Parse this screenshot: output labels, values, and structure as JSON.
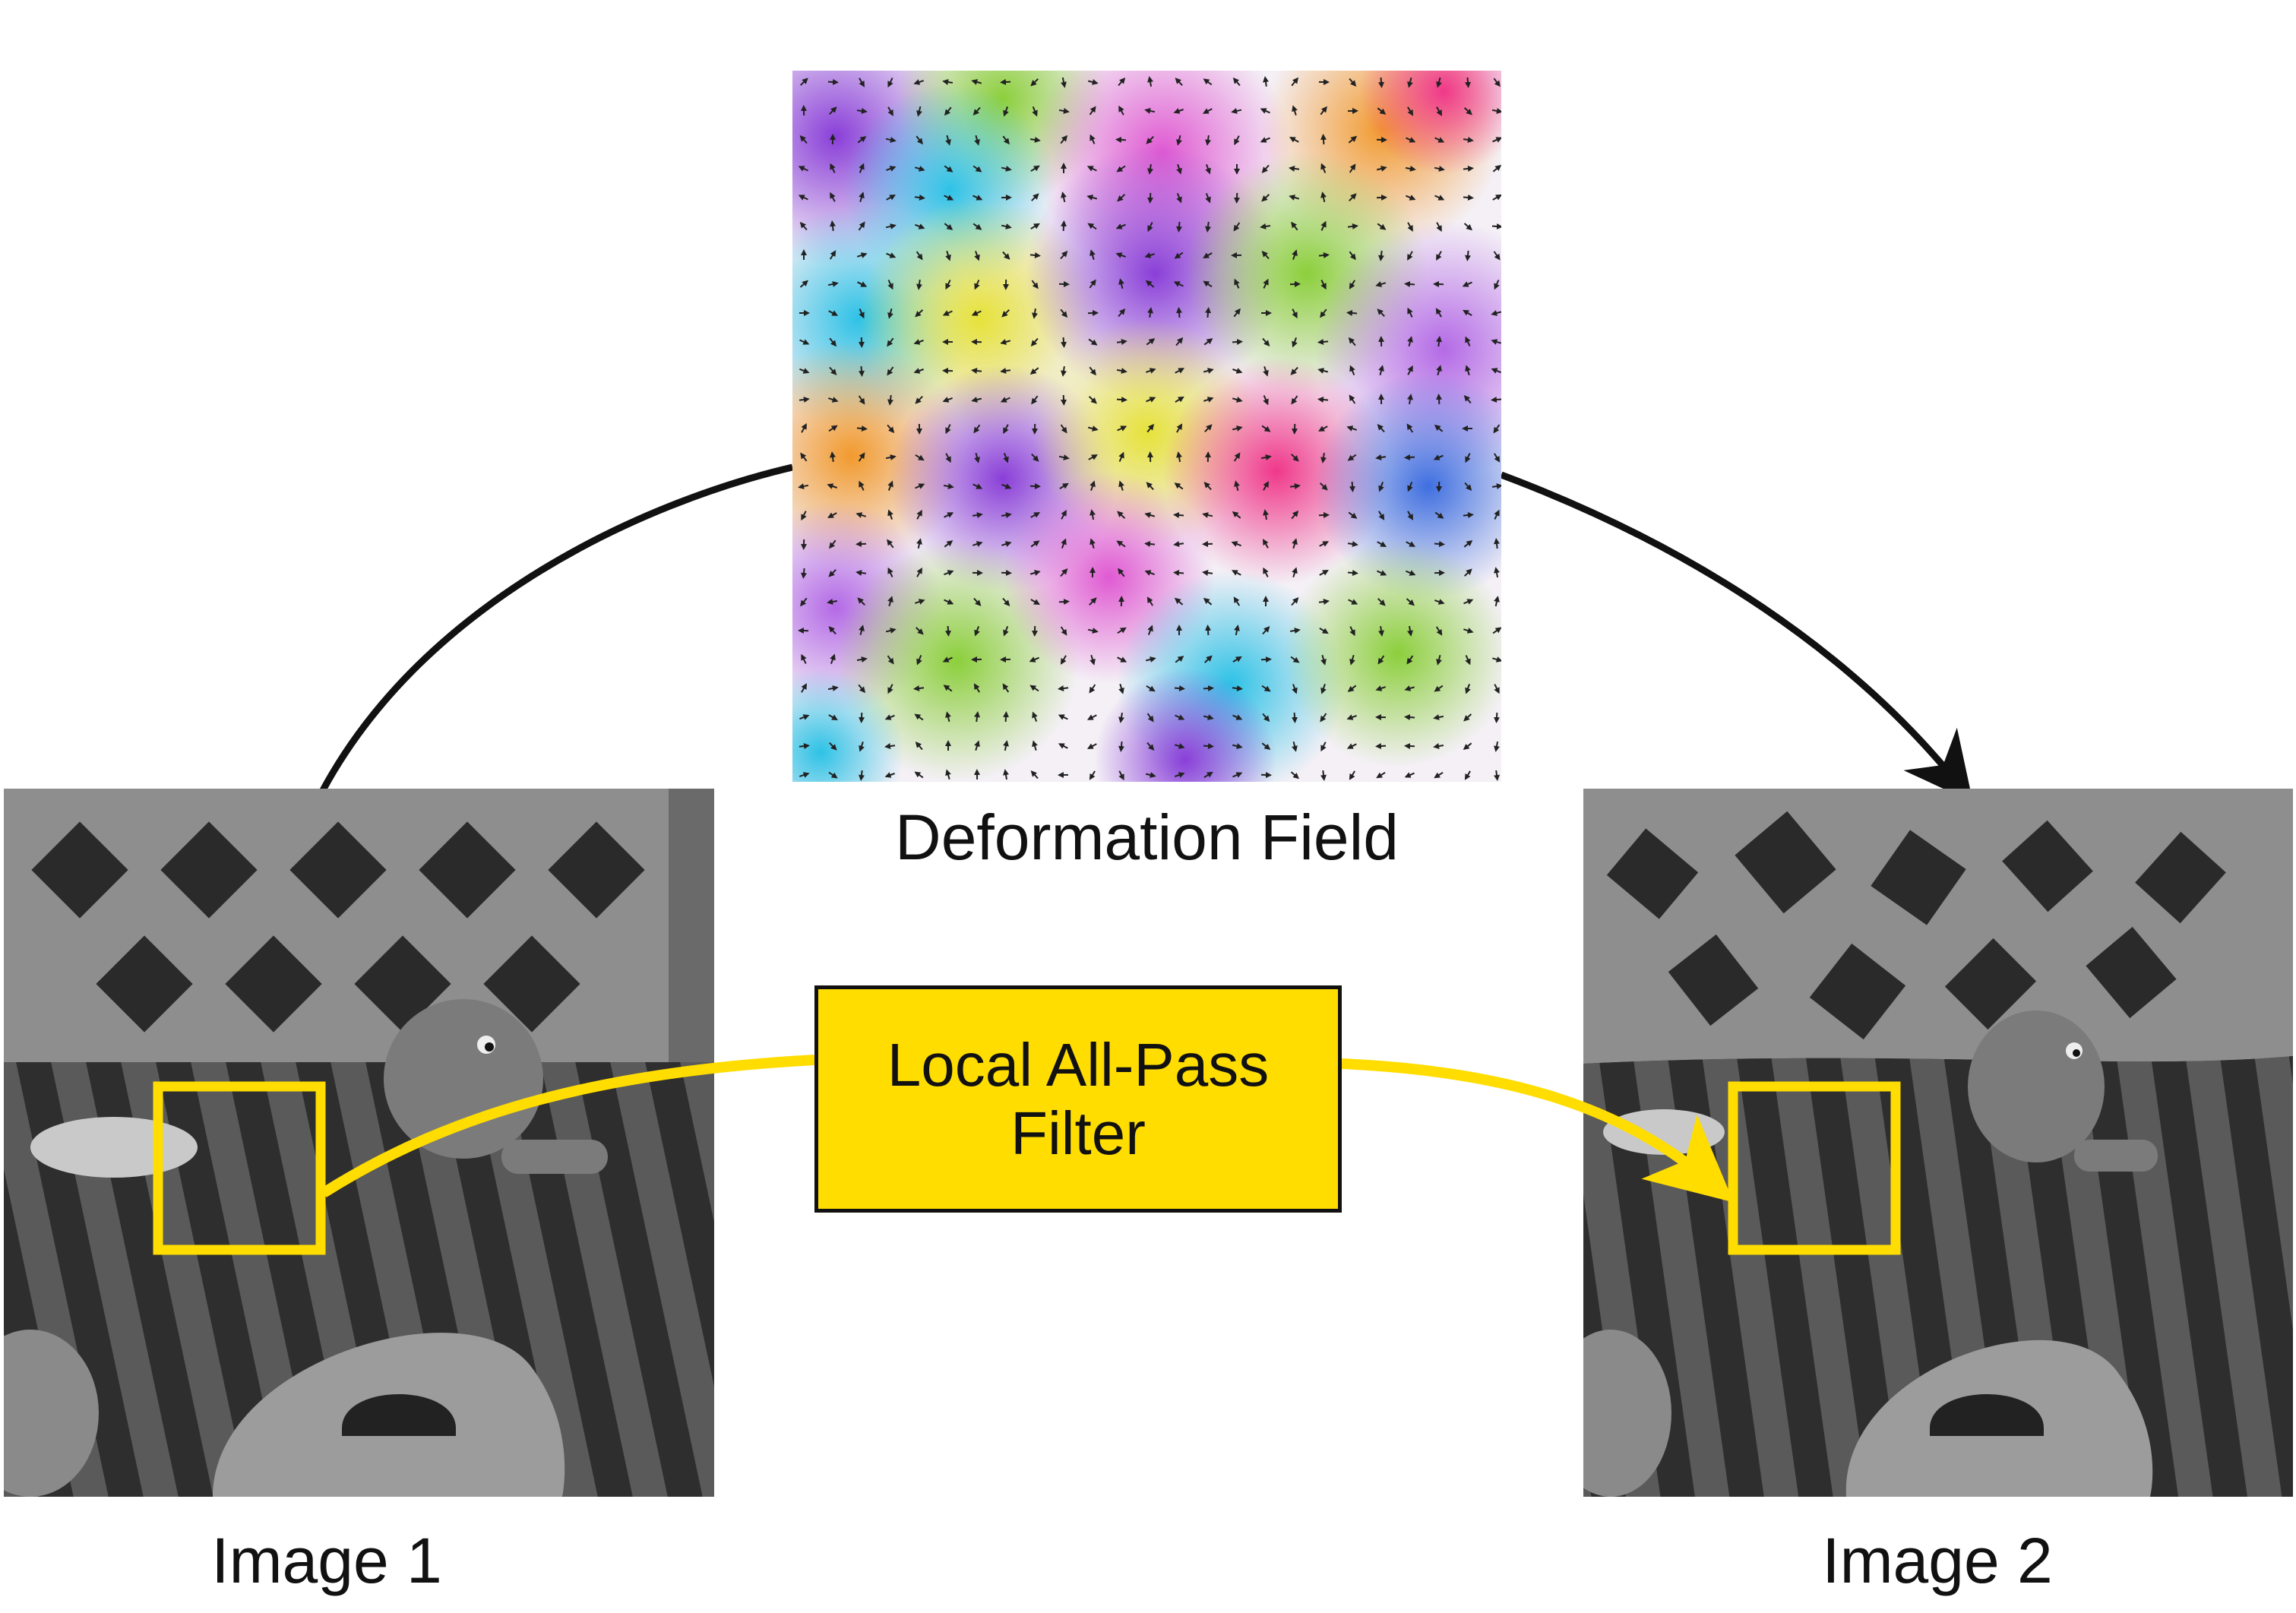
{
  "labels": {
    "deformation_field": "Deformation Field",
    "image1": "Image 1",
    "image2": "Image 2",
    "filter_line1": "Local All-Pass",
    "filter_line2": "Filter"
  },
  "colors": {
    "highlight": "#FFDD00",
    "arrow": "#111111",
    "background": "#ffffff"
  },
  "icons": {
    "field_vectors": "small-arrow-glyphs",
    "roi_marker": "square-outline"
  }
}
